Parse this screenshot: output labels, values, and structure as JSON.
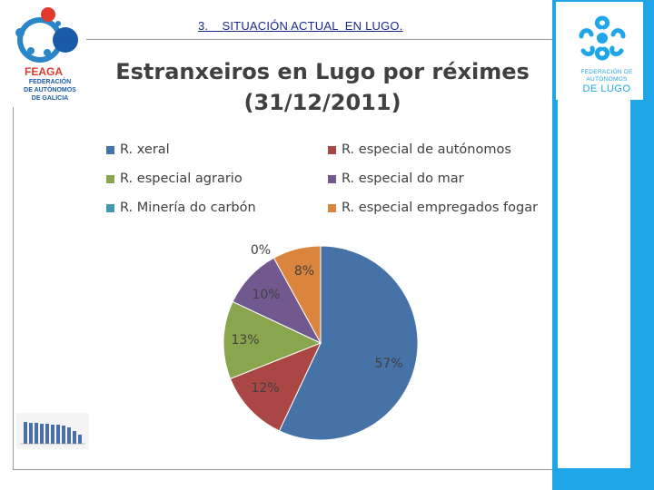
{
  "header": {
    "section_title": "3.    SITUACIÓN ACTUAL  EN LUGO."
  },
  "logos": {
    "left": {
      "name": "FEAGA",
      "line1": "FEDERACIÓN",
      "line2": "DE AUTÓNOMOS",
      "line3": "DE GALICIA"
    },
    "right": {
      "line1": "FEDERACIÓN DE",
      "line2": "AUTÓNOMOS",
      "big": "DE LUGO"
    }
  },
  "chart_data": {
    "type": "pie",
    "title": "Estranxeiros en Lugo por réximes",
    "subtitle": "(31/12/2011)",
    "legend_position": "top",
    "categories": [
      "R. xeral",
      "R. especial de autónomos",
      "R. especial agrario",
      "R. especial do mar",
      "R. Minería do carbón",
      "R. especial empregados fogar"
    ],
    "values": [
      57,
      12,
      13,
      10,
      0,
      8
    ],
    "labels": [
      "57%",
      "12%",
      "13%",
      "10%",
      "0%",
      "8%"
    ],
    "colors": [
      "#4572a7",
      "#aa4643",
      "#89a54e",
      "#71588f",
      "#4198af",
      "#db843d"
    ]
  }
}
